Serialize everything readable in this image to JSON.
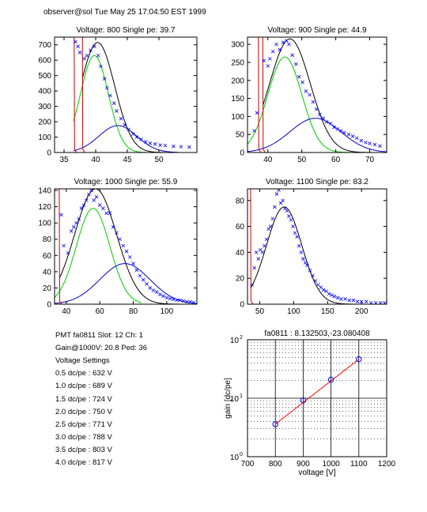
{
  "header": {
    "text": "observer@sol  Tue May 25 17:04:50 EST 1999"
  },
  "info": {
    "lines": [
      "PMT fa0811 Slot: 12 Ch: 1",
      "Gain@1000V: 20.8 Ped: 36",
      "Voltage Settings",
      "0.5 dc/pe : 632 V",
      "1.0 dc/pe : 689 V",
      "1.5 dc/pe : 724 V",
      "2.0 dc/pe : 750 V",
      "2.5 dc/pe : 771 V",
      "3.0 dc/pe : 788 V",
      "3.5 dc/pe : 803 V",
      "4.0 dc/pe : 817 V"
    ]
  },
  "colors": {
    "data": "#0000ff",
    "total": "#000000",
    "pe1": "#00cc00",
    "pe2": "#0000cc",
    "pedestal": "#cc0000",
    "fit": "#ff0000"
  },
  "chart_data": [
    {
      "type": "scatter",
      "title": "Voltage: 800 Single pe: 39.7",
      "xlim": [
        33.5,
        56
      ],
      "ylim": [
        0,
        750
      ],
      "xticks": [
        35,
        40,
        45,
        50
      ],
      "yticks": [
        0,
        100,
        200,
        300,
        400,
        500,
        600,
        700
      ],
      "pedestal_lines": [
        36.6,
        37.9
      ],
      "points": [
        [
          36.8,
          720
        ],
        [
          37.2,
          690
        ],
        [
          37.5,
          650
        ],
        [
          38.2,
          610
        ],
        [
          38.6,
          630
        ],
        [
          39.2,
          665
        ],
        [
          39.8,
          690
        ],
        [
          40.4,
          630
        ],
        [
          40.8,
          560
        ],
        [
          41.4,
          480
        ],
        [
          41.8,
          420
        ],
        [
          42.3,
          370
        ],
        [
          42.9,
          320
        ],
        [
          43.3,
          270
        ],
        [
          44.0,
          220
        ],
        [
          44.6,
          180
        ],
        [
          45.2,
          150
        ],
        [
          45.9,
          120
        ],
        [
          46.5,
          100
        ],
        [
          47.2,
          85
        ],
        [
          47.9,
          70
        ],
        [
          48.6,
          60
        ],
        [
          49.4,
          55
        ],
        [
          50.2,
          48
        ],
        [
          51.0,
          45
        ],
        [
          52.3,
          40
        ],
        [
          53.5,
          38
        ],
        [
          54.8,
          35
        ]
      ],
      "curves": [
        {
          "name": "total",
          "mu": 40.3,
          "sigma": 2.7,
          "amp": 715,
          "x0": 37.9,
          "x1": 53
        },
        {
          "name": "1pe",
          "mu": 39.8,
          "sigma": 2.2,
          "amp": 630,
          "x0": 36.5,
          "x1": 48
        },
        {
          "name": "2pe",
          "mu": 43.5,
          "sigma": 3.0,
          "amp": 175,
          "x0": 36.5,
          "x1": 53
        }
      ]
    },
    {
      "type": "scatter",
      "title": "Voltage: 900 Single pe: 44.9",
      "xlim": [
        34,
        75
      ],
      "ylim": [
        0,
        320
      ],
      "xticks": [
        40,
        50,
        60,
        70
      ],
      "yticks": [
        0,
        50,
        100,
        150,
        200,
        250,
        300
      ],
      "pedestal_lines": [
        37.2,
        38.5
      ],
      "points": [
        [
          36,
          60
        ],
        [
          36.8,
          110
        ],
        [
          38.8,
          255
        ],
        [
          40,
          240
        ],
        [
          40.6,
          260
        ],
        [
          41.5,
          280
        ],
        [
          42.5,
          300
        ],
        [
          43.5,
          285
        ],
        [
          44.5,
          305
        ],
        [
          45.5,
          310
        ],
        [
          46.2,
          300
        ],
        [
          47.2,
          270
        ],
        [
          48.3,
          245
        ],
        [
          49.2,
          210
        ],
        [
          50.2,
          195
        ],
        [
          51.2,
          170
        ],
        [
          52.3,
          160
        ],
        [
          53.3,
          140
        ],
        [
          54.3,
          120
        ],
        [
          55.3,
          105
        ],
        [
          56.3,
          95
        ],
        [
          57.3,
          85
        ],
        [
          58.5,
          80
        ],
        [
          59.5,
          70
        ],
        [
          60.5,
          65
        ],
        [
          61.5,
          60
        ],
        [
          62.5,
          55
        ],
        [
          63.8,
          50
        ],
        [
          65,
          45
        ],
        [
          66.2,
          40
        ],
        [
          67.5,
          33
        ],
        [
          68.8,
          28
        ],
        [
          70,
          25
        ],
        [
          71.5,
          22
        ],
        [
          73,
          18
        ]
      ],
      "curves": [
        {
          "name": "total",
          "mu": 46.5,
          "sigma": 6.0,
          "amp": 315,
          "x0": 38.5,
          "x1": 75
        },
        {
          "name": "1pe",
          "mu": 45.0,
          "sigma": 5.0,
          "amp": 265,
          "x0": 34,
          "x1": 65
        },
        {
          "name": "2pe",
          "mu": 54.0,
          "sigma": 7.5,
          "amp": 95,
          "x0": 34,
          "x1": 75
        }
      ]
    },
    {
      "type": "scatter",
      "title": "Voltage: 1000 Single pe: 55.9",
      "xlim": [
        33,
        118
      ],
      "ylim": [
        0,
        142
      ],
      "xticks": [
        40,
        60,
        80,
        100
      ],
      "yticks": [
        0,
        20,
        40,
        60,
        80,
        100,
        120,
        140
      ],
      "pedestal_lines": [
        35.8
      ],
      "points": [
        [
          37,
          110
        ],
        [
          38.5,
          72
        ],
        [
          41,
          63
        ],
        [
          43,
          90
        ],
        [
          44.5,
          95
        ],
        [
          46,
          100
        ],
        [
          47.5,
          105
        ],
        [
          49,
          118
        ],
        [
          50.5,
          122
        ],
        [
          52,
          128
        ],
        [
          53.5,
          135
        ],
        [
          55,
          140
        ],
        [
          56.5,
          128
        ],
        [
          58,
          132
        ],
        [
          60,
          122
        ],
        [
          62,
          118
        ],
        [
          64,
          112
        ],
        [
          66,
          112
        ],
        [
          68,
          95
        ],
        [
          70,
          88
        ],
        [
          72,
          80
        ],
        [
          74,
          72
        ],
        [
          76,
          65
        ],
        [
          78,
          58
        ],
        [
          80,
          50
        ],
        [
          82,
          42
        ],
        [
          84,
          35
        ],
        [
          86,
          30
        ],
        [
          88,
          25
        ],
        [
          90,
          20
        ],
        [
          92,
          17
        ],
        [
          94,
          15
        ],
        [
          96,
          12
        ],
        [
          98,
          10
        ],
        [
          100,
          8
        ],
        [
          102,
          7
        ],
        [
          104,
          6
        ],
        [
          106,
          5
        ],
        [
          108,
          5
        ],
        [
          110,
          4
        ],
        [
          112,
          3
        ],
        [
          114,
          3
        ],
        [
          116,
          2
        ]
      ],
      "curves": [
        {
          "name": "total",
          "mu": 57.5,
          "sigma": 12.5,
          "amp": 142,
          "x0": 36,
          "x1": 118
        },
        {
          "name": "1pe",
          "mu": 56.0,
          "sigma": 10.0,
          "amp": 118,
          "x0": 33,
          "x1": 85
        },
        {
          "name": "2pe",
          "mu": 75.0,
          "sigma": 15.0,
          "amp": 50,
          "x0": 33,
          "x1": 118
        }
      ]
    },
    {
      "type": "scatter",
      "title": "Voltage: 1100 Single pe: 83.2",
      "xlim": [
        32,
        237
      ],
      "ylim": [
        0,
        89
      ],
      "xticks": [
        50,
        100,
        150,
        200
      ],
      "yticks": [
        0,
        20,
        40,
        60,
        80
      ],
      "pedestal_lines": [
        36.5
      ],
      "points": [
        [
          39,
          15
        ],
        [
          42,
          28
        ],
        [
          45,
          40
        ],
        [
          48,
          35
        ],
        [
          51,
          42
        ],
        [
          54,
          40
        ],
        [
          57,
          45
        ],
        [
          60,
          50
        ],
        [
          63,
          58
        ],
        [
          66,
          60
        ],
        [
          69,
          66
        ],
        [
          72,
          75
        ],
        [
          75,
          85
        ],
        [
          78,
          88
        ],
        [
          81,
          78
        ],
        [
          84,
          80
        ],
        [
          87,
          74
        ],
        [
          90,
          72
        ],
        [
          93,
          68
        ],
        [
          96,
          65
        ],
        [
          99,
          60
        ],
        [
          102,
          55
        ],
        [
          105,
          52
        ],
        [
          108,
          45
        ],
        [
          111,
          40
        ],
        [
          114,
          35
        ],
        [
          117,
          32
        ],
        [
          120,
          30
        ],
        [
          124,
          26
        ],
        [
          128,
          22
        ],
        [
          132,
          18
        ],
        [
          136,
          15
        ],
        [
          140,
          13
        ],
        [
          144,
          11
        ],
        [
          148,
          10
        ],
        [
          152,
          8
        ],
        [
          156,
          7
        ],
        [
          160,
          6
        ],
        [
          165,
          5
        ],
        [
          170,
          4
        ],
        [
          176,
          4
        ],
        [
          182,
          3
        ],
        [
          188,
          3
        ],
        [
          194,
          2
        ],
        [
          200,
          2
        ],
        [
          207,
          2
        ],
        [
          214,
          1
        ],
        [
          221,
          1
        ],
        [
          228,
          1
        ],
        [
          234,
          1
        ]
      ],
      "curves": [
        {
          "name": "total",
          "mu": 86.0,
          "sigma": 26.0,
          "amp": 75,
          "x0": 36.5,
          "x1": 237
        }
      ]
    },
    {
      "type": "line",
      "title": "fa0811 : 8.132503,-23.080408",
      "xlabel": "voltage [V]",
      "ylabel": "gain [dc/pe]",
      "xlim": [
        700,
        1200
      ],
      "ylim": [
        1,
        100
      ],
      "yscale": "log",
      "xticks": [
        700,
        800,
        900,
        1000,
        1100,
        1200
      ],
      "yticks": [
        {
          "v": 1,
          "base": "10",
          "exp": "0"
        },
        {
          "v": 10,
          "base": "10",
          "exp": "1"
        },
        {
          "v": 100,
          "base": "10",
          "exp": "2"
        }
      ],
      "grid": true,
      "x": [
        800,
        900,
        1000,
        1100
      ],
      "y": [
        3.6,
        9.2,
        20.8,
        46.5
      ],
      "fit_line": {
        "x": [
          800,
          1100
        ],
        "y": [
          3.6,
          46.5
        ]
      }
    }
  ]
}
